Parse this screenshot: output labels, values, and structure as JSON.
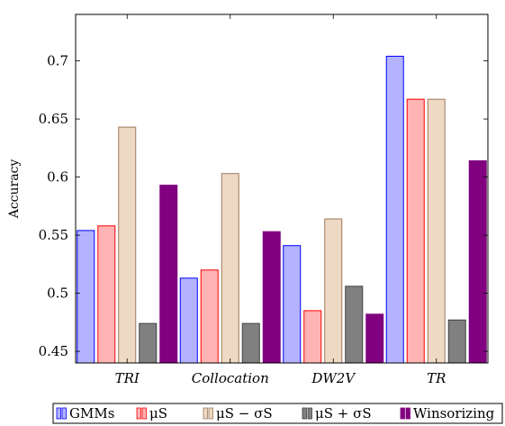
{
  "chart_data": {
    "type": "bar",
    "title": "",
    "xlabel": "",
    "ylabel": "Accuracy",
    "ylim": [
      0.44,
      0.74
    ],
    "yticks": [
      0.45,
      0.5,
      0.55,
      0.6,
      0.65,
      0.7
    ],
    "ytick_labels": [
      "0.45",
      "0.5",
      "0.55",
      "0.6",
      "0.65",
      "0.7"
    ],
    "categories": [
      "TRI",
      "Collocation",
      "DW2V",
      "TR"
    ],
    "grid": false,
    "legend_position": "bottom",
    "series": [
      {
        "name": "GMMs",
        "values": [
          0.554,
          0.513,
          0.541,
          0.704
        ],
        "fill": "#b3b3ff",
        "stroke": "#0000ff"
      },
      {
        "name": "μS",
        "values": [
          0.558,
          0.52,
          0.485,
          0.667
        ],
        "fill": "#ffb3b3",
        "stroke": "#ff0000"
      },
      {
        "name": "μS − σS",
        "values": [
          0.643,
          0.603,
          0.564,
          0.667
        ],
        "fill": "#edd9c4",
        "stroke": "#a0785a"
      },
      {
        "name": "μS + σS",
        "values": [
          0.474,
          0.474,
          0.506,
          0.477
        ],
        "fill": "#808080",
        "stroke": "#404040"
      },
      {
        "name": "Winsorizing",
        "values": [
          0.593,
          0.553,
          0.482,
          0.614
        ],
        "fill": "#800080",
        "stroke": "#800080"
      }
    ]
  }
}
